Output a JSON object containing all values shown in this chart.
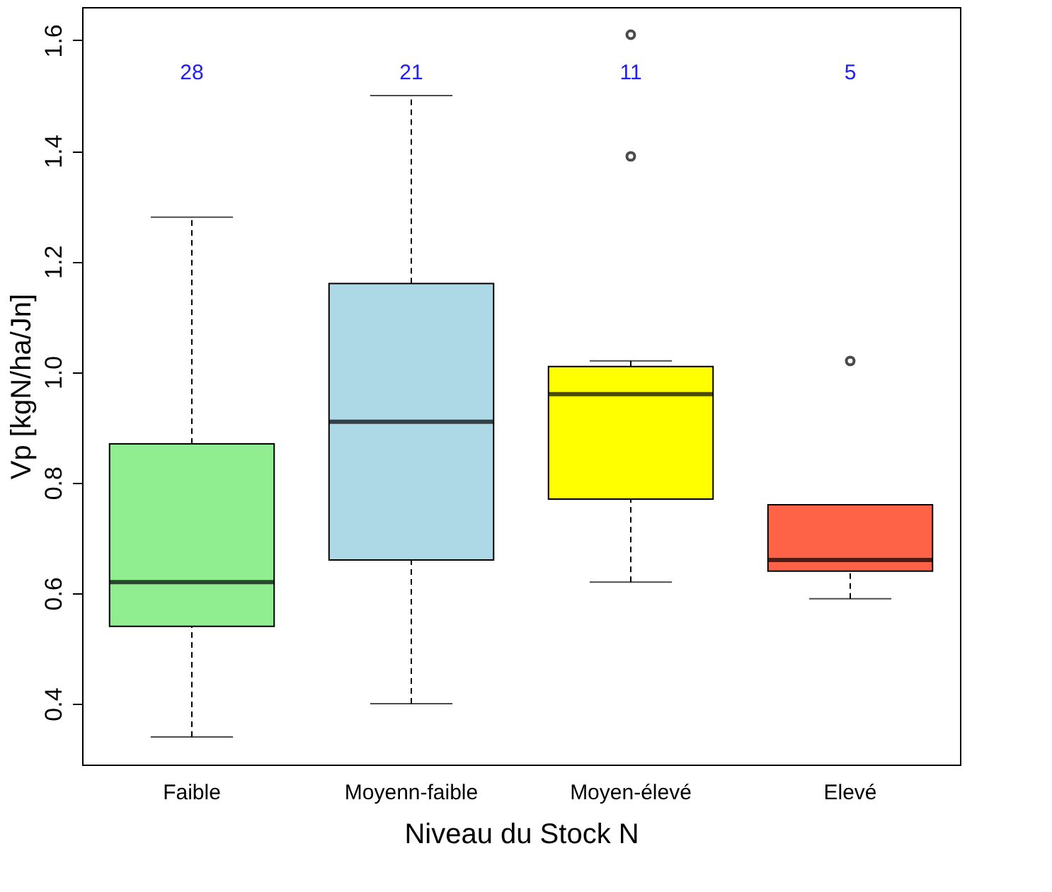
{
  "chart_data": {
    "type": "box",
    "xlabel": "Niveau du Stock N",
    "ylabel": "Vp [kgN/ha/Jn]",
    "categories": [
      "Faible",
      "Moyenn-faible",
      "Moyen-élevé",
      "Elevé"
    ],
    "colors": [
      "#90ee90",
      "#add8e6",
      "#ffff00",
      "#ff6347"
    ],
    "boxes": [
      {
        "low": 0.34,
        "q1": 0.54,
        "median": 0.62,
        "q3": 0.87,
        "high": 1.28
      },
      {
        "low": 0.4,
        "q1": 0.66,
        "median": 0.91,
        "q3": 1.16,
        "high": 1.5
      },
      {
        "low": 0.62,
        "q1": 0.77,
        "median": 0.96,
        "q3": 1.01,
        "high": 1.02,
        "outliers": [
          1.39,
          1.61
        ]
      },
      {
        "low": 0.59,
        "q1": 0.64,
        "median": 0.66,
        "q3": 0.76,
        "high": 0.76,
        "outliers": [
          1.02
        ]
      }
    ],
    "ylim": [
      0.29,
      1.66
    ],
    "yticks": [
      {
        "value": 0.4,
        "label": "0.4"
      },
      {
        "value": 0.6,
        "label": "0.6"
      },
      {
        "value": 0.8,
        "label": "0.8"
      },
      {
        "value": 1.0,
        "label": "1.0"
      },
      {
        "value": 1.2,
        "label": "1.2"
      },
      {
        "value": 1.4,
        "label": "1.4"
      },
      {
        "value": 1.6,
        "label": "1.6"
      }
    ],
    "annotations": [
      "28",
      "21",
      "11",
      "5"
    ],
    "grid": false
  }
}
